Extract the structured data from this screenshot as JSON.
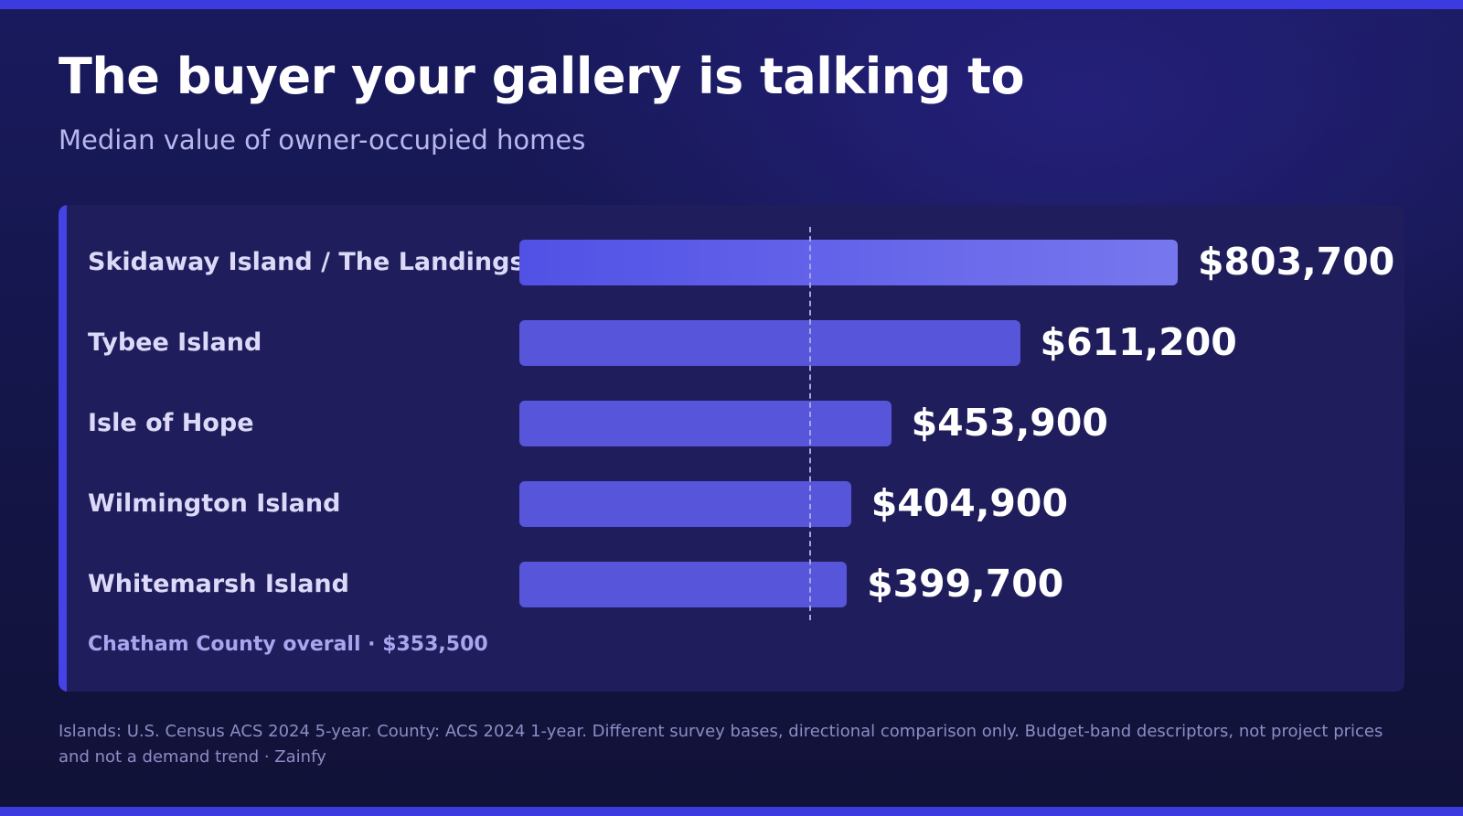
{
  "header": {
    "title": "The buyer your gallery is talking to",
    "subtitle": "Median value of owner-occupied homes"
  },
  "chart_data": {
    "type": "bar",
    "orientation": "horizontal",
    "title": "The buyer your gallery is talking to",
    "subtitle": "Median value of owner-occupied homes",
    "categories": [
      "Skidaway Island / The Landings",
      "Tybee Island",
      "Isle of Hope",
      "Wilmington Island",
      "Whitemarsh Island"
    ],
    "values": [
      803700,
      611200,
      453900,
      404900,
      399700
    ],
    "value_labels": [
      "$803,700",
      "$611,200",
      "$453,900",
      "$404,900",
      "$399,700"
    ],
    "reference": {
      "label": "Chatham County overall",
      "value": 353500,
      "value_label": "$353,500",
      "note": "Chatham County overall · $353,500"
    },
    "xlim": [
      0,
      803700
    ],
    "grid": false,
    "legend": "none"
  },
  "footer": {
    "source": "Islands: U.S. Census ACS 2024 5-year. County: ACS 2024 1-year. Different survey bases, directional comparison only. Budget-band descriptors, not project prices and not a demand trend · Zainfy"
  },
  "colors": {
    "accent": "#3b3be0",
    "bar": "#5755da",
    "bar_top_start": "#5151e6",
    "bar_top_end": "#7777ee",
    "panel": "#1f1d5c",
    "background": "#141547"
  }
}
